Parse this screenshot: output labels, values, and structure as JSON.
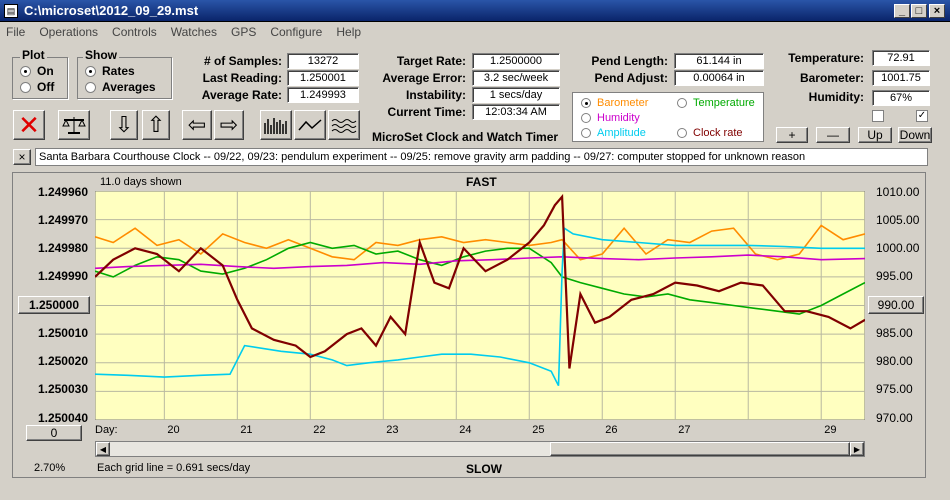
{
  "window": {
    "title": "C:\\microset\\2012_09_29.mst",
    "min": "_",
    "max": "□",
    "close": "×"
  },
  "menu": [
    "File",
    "Operations",
    "Controls",
    "Watches",
    "GPS",
    "Configure",
    "Help"
  ],
  "plot": {
    "label": "Plot",
    "on": "On",
    "off": "Off"
  },
  "show": {
    "label": "Show",
    "rates": "Rates",
    "averages": "Averages"
  },
  "stats": {
    "samples_label": "# of Samples:",
    "samples": "13272",
    "last_label": "Last Reading:",
    "last": "1.250001",
    "avg_label": "Average Rate:",
    "avg": "1.249993",
    "target_label": "Target Rate:",
    "target": "1.2500000",
    "avgerr_label": "Average Error:",
    "avgerr": "3.2 sec/week",
    "instab_label": "Instability:",
    "instab": "1 secs/day",
    "time_label": "Current Time:",
    "time": "12:03:34 AM",
    "pendlen_label": "Pend Length:",
    "pendlen": "61.144 in",
    "pendadj_label": "Pend Adjust:",
    "pendadj": "0.00064 in",
    "temp_label": "Temperature:",
    "temp": "72.91",
    "baro_label": "Barometer:",
    "baro": "1001.75",
    "hum_label": "Humidity:",
    "hum": "67%"
  },
  "timer_title": "MicroSet Clock and Watch Timer",
  "sensors": {
    "barometer": "Barometer",
    "temperature": "Temperature",
    "humidity": "Humidity",
    "amplitude": "Amplitude",
    "clockrate": "Clock rate"
  },
  "scale_buttons": {
    "plus": "+",
    "minus": "—",
    "up": "Up",
    "down": "Down"
  },
  "notes_close": "×",
  "notes": "Santa Barbara Courthouse Clock  -- 09/22, 09/23: pendulum experiment  -- 09/25: remove gravity arm padding  -- 09/27: computer stopped for unknown reason",
  "colors": {
    "barometer": "#ff8c00",
    "temperature": "#00aa00",
    "humidity": "#cc00cc",
    "amplitude": "#00ccee",
    "clockrate": "#800000",
    "plotbg": "#ffffc0"
  },
  "chart_data": {
    "type": "line",
    "days_shown": "11.0 days shown",
    "top_label": "FAST",
    "bottom_label": "SLOW",
    "left_ticks": [
      "1.249960",
      "1.249970",
      "1.249980",
      "1.249990",
      "1.250000",
      "1.250010",
      "1.250020",
      "1.250030",
      "1.250040"
    ],
    "left_center_button": "1.250000",
    "right_ticks": [
      "1010.00",
      "1005.00",
      "1000.00",
      "995.00",
      "990.00",
      "985.00",
      "980.00",
      "975.00",
      "970.00"
    ],
    "right_center_button": "990.00",
    "x_label": "Day:",
    "x_ticks": [
      "20",
      "21",
      "22",
      "23",
      "24",
      "25",
      "26",
      "27",
      "29"
    ],
    "zero_button": "0",
    "grid_note": "Each grid line = 0.691 secs/day",
    "percent": "2.70%",
    "ylim_left": [
      1.24996,
      1.25004
    ],
    "ylim_right": [
      970,
      1010
    ],
    "xlim": [
      19.05,
      29.6
    ],
    "series": [
      {
        "name": "Barometer",
        "x": [
          19.05,
          19.3,
          19.6,
          19.9,
          20.2,
          20.5,
          20.8,
          21.1,
          21.4,
          21.7,
          22.0,
          22.3,
          22.6,
          22.9,
          23.2,
          23.5,
          23.8,
          24.1,
          24.4,
          24.7,
          25.0,
          25.3,
          25.45,
          25.7,
          26.0,
          26.3,
          26.6,
          26.9,
          27.2,
          27.5,
          27.8,
          28.1,
          28.4,
          28.7,
          29.0,
          29.3,
          29.6
        ],
        "values": [
          1002.0,
          1001.0,
          1003.5,
          1000.5,
          1001.5,
          999.0,
          1002.5,
          1001.0,
          1000.0,
          1001.5,
          1000.0,
          998.5,
          998.0,
          1001.0,
          1000.5,
          1001.5,
          1002.0,
          1001.0,
          1001.5,
          1001.0,
          1000.5,
          1001.0,
          1001.5,
          998.0,
          999.0,
          1003.5,
          999.0,
          1001.5,
          1001.0,
          1003.0,
          1003.5,
          999.0,
          998.0,
          999.0,
          1004.0,
          1001.5,
          1002.5
        ]
      },
      {
        "name": "Temperature",
        "x": [
          19.05,
          19.3,
          19.6,
          19.9,
          20.2,
          20.5,
          20.8,
          21.1,
          21.4,
          21.7,
          22.0,
          22.3,
          22.6,
          22.9,
          23.2,
          23.5,
          23.8,
          24.1,
          24.4,
          24.7,
          25.0,
          25.3,
          25.45,
          25.7,
          26.0,
          26.3,
          26.6,
          26.9,
          27.2,
          27.5,
          27.8,
          28.1,
          28.4,
          28.7,
          29.0,
          29.3,
          29.6
        ],
        "values": [
          996.0,
          995.0,
          997.0,
          998.5,
          998.0,
          996.0,
          995.5,
          996.5,
          998.0,
          1000.0,
          1001.0,
          1000.0,
          1000.5,
          999.0,
          999.5,
          998.0,
          997.0,
          998.5,
          999.5,
          1000.0,
          1000.0,
          997.5,
          995.0,
          994.0,
          993.0,
          992.0,
          991.5,
          992.0,
          991.0,
          990.5,
          990.0,
          989.5,
          989.0,
          988.5,
          990.0,
          992.0,
          994.0
        ]
      },
      {
        "name": "Humidity",
        "x": [
          19.05,
          19.5,
          20.0,
          20.5,
          21.0,
          21.5,
          22.0,
          22.5,
          23.0,
          23.5,
          24.0,
          24.5,
          25.0,
          25.45,
          26.0,
          26.5,
          27.0,
          27.5,
          28.0,
          28.5,
          29.0,
          29.6
        ],
        "values": [
          996.5,
          996.8,
          997.0,
          997.2,
          996.8,
          996.5,
          996.8,
          997.0,
          997.5,
          997.2,
          997.8,
          998.0,
          998.3,
          998.5,
          998.2,
          998.0,
          998.3,
          998.5,
          998.8,
          998.5,
          998.0,
          998.2
        ]
      },
      {
        "name": "Amplitude",
        "x": [
          19.05,
          19.5,
          20.0,
          20.5,
          20.9,
          21.1,
          21.6,
          22.0,
          22.3,
          22.5,
          22.8,
          23.2,
          23.5,
          23.8,
          24.2,
          24.6,
          25.0,
          25.3,
          25.4,
          25.45,
          25.48,
          25.6,
          26.0,
          26.5,
          27.0,
          27.5,
          28.0,
          28.5,
          29.0,
          29.6
        ],
        "values": [
          978.0,
          977.8,
          977.5,
          977.8,
          978.0,
          983.0,
          982.0,
          981.5,
          980.5,
          979.5,
          980.0,
          980.5,
          981.0,
          981.5,
          981.5,
          981.0,
          980.0,
          978.5,
          976.0,
          996.0,
          1003.5,
          1002.5,
          1001.5,
          1001.0,
          1000.5,
          1000.5,
          1000.5,
          1000.3,
          1000.0,
          1000.0
        ]
      },
      {
        "name": "Clock rate",
        "x": [
          19.05,
          19.3,
          19.6,
          19.9,
          20.2,
          20.5,
          20.8,
          21.0,
          21.2,
          21.5,
          21.8,
          22.0,
          22.2,
          22.5,
          22.7,
          22.9,
          23.1,
          23.3,
          23.5,
          23.7,
          23.9,
          24.1,
          24.4,
          24.7,
          25.0,
          25.2,
          25.35,
          25.45,
          25.55,
          25.7,
          25.9,
          26.1,
          26.4,
          26.7,
          27.0,
          27.3,
          27.6,
          27.9,
          28.2,
          28.5,
          28.8,
          29.1,
          29.4,
          29.6
        ],
        "values": [
          1.24999,
          1.249984,
          1.24998,
          1.249982,
          1.249988,
          1.24998,
          1.249986,
          1.249998,
          1.250008,
          1.250012,
          1.250014,
          1.250018,
          1.250016,
          1.25001,
          1.250008,
          1.250014,
          1.250004,
          1.25001,
          1.249978,
          1.249992,
          1.249994,
          1.24998,
          1.249988,
          1.249984,
          1.249978,
          1.249972,
          1.249965,
          1.249962,
          1.250022,
          1.249996,
          1.250006,
          1.250004,
          1.249998,
          1.249996,
          1.249992,
          1.249993,
          1.249995,
          1.249992,
          1.249993,
          1.250002,
          1.250002,
          1.250004,
          1.250008,
          1.250005
        ]
      }
    ]
  }
}
